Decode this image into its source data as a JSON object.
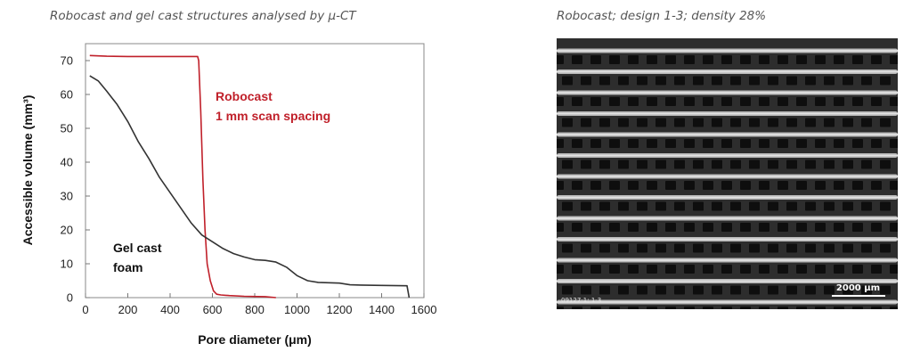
{
  "captions": {
    "chart": "Robocast and gel cast structures analysed by μ-CT",
    "micrograph": "Robocast; design 1-3; density 28%"
  },
  "chart_data": {
    "type": "line",
    "xlabel": "Pore diameter (μm)",
    "ylabel": "Accessible volume (mm³)",
    "xlim": [
      0,
      1600
    ],
    "ylim": [
      0,
      75
    ],
    "xticks": [
      0,
      200,
      400,
      600,
      800,
      1000,
      1200,
      1400,
      1600
    ],
    "yticks": [
      0,
      10,
      20,
      30,
      40,
      50,
      60,
      70
    ],
    "grid": false,
    "series": [
      {
        "name": "Robocast 1 mm scan spacing",
        "label_lines": [
          "Robocast",
          "1 mm scan spacing"
        ],
        "color": "#c0202a",
        "x": [
          20,
          100,
          200,
          300,
          400,
          500,
          530,
          535,
          545,
          555,
          565,
          575,
          590,
          605,
          620,
          640,
          680,
          750,
          850,
          900
        ],
        "y": [
          71.5,
          71.3,
          71.2,
          71.2,
          71.2,
          71.2,
          71.2,
          70,
          55,
          35,
          20,
          10,
          5,
          2,
          1,
          0.8,
          0.6,
          0.4,
          0.3,
          0
        ]
      },
      {
        "name": "Gel cast foam",
        "label_lines": [
          "Gel cast",
          "foam"
        ],
        "color": "#333333",
        "x": [
          20,
          60,
          100,
          150,
          200,
          250,
          300,
          350,
          400,
          450,
          500,
          550,
          600,
          650,
          700,
          750,
          800,
          850,
          900,
          950,
          1000,
          1050,
          1100,
          1200,
          1250,
          1300,
          1400,
          1520,
          1530
        ],
        "y": [
          65.5,
          64,
          61,
          57,
          52,
          46,
          41,
          35.5,
          31,
          26.5,
          22,
          18.5,
          16.5,
          14.5,
          13,
          12,
          11.2,
          11,
          10.5,
          9,
          6.5,
          5,
          4.5,
          4.3,
          3.8,
          3.7,
          3.6,
          3.5,
          0
        ]
      }
    ]
  },
  "micrograph": {
    "sample_id": "09127-1; 1-3",
    "scale_bar_label": "2000 µm"
  }
}
